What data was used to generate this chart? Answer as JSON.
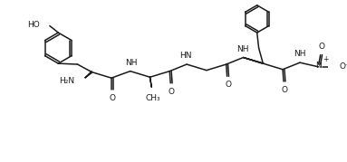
{
  "bg_color": "#ffffff",
  "line_color": "#1a1a1a",
  "line_width": 1.1,
  "font_size": 6.5,
  "figsize": [
    3.83,
    1.79
  ],
  "dpi": 100,
  "xlim": [
    0,
    383
  ],
  "ylim": [
    0,
    179
  ]
}
